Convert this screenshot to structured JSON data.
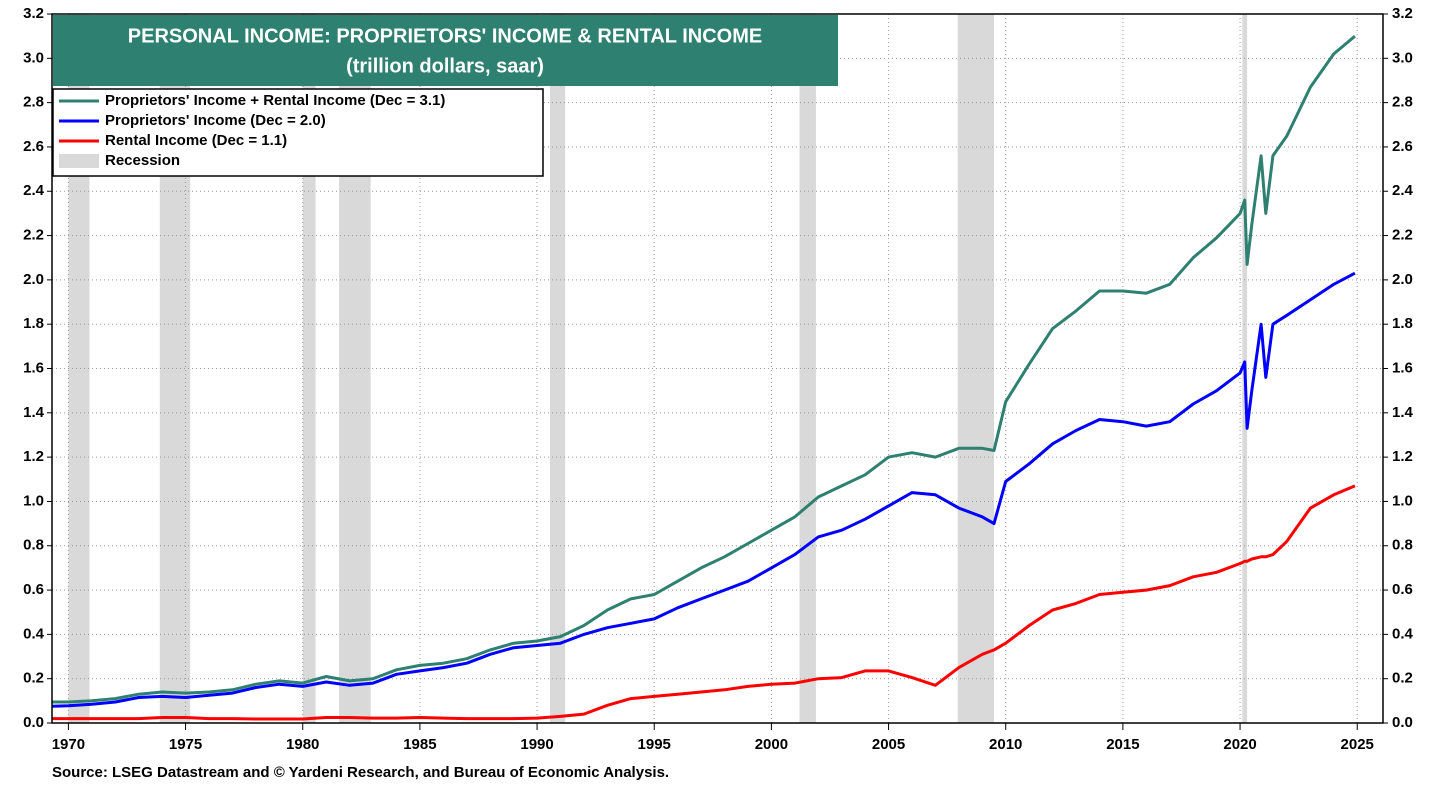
{
  "chart_data": {
    "type": "line",
    "title": "PERSONAL INCOME: PROPRIETORS' INCOME & RENTAL INCOME",
    "subtitle": "(trillion dollars, saar)",
    "source": "Source: LSEG Datastream and © Yardeni Research, and Bureau of Economic Analysis.",
    "x": [
      1969,
      1970,
      1971,
      1972,
      1973,
      1974,
      1975,
      1976,
      1977,
      1978,
      1979,
      1980,
      1981,
      1982,
      1983,
      1984,
      1985,
      1986,
      1987,
      1988,
      1989,
      1990,
      1991,
      1992,
      1993,
      1994,
      1995,
      1996,
      1997,
      1998,
      1999,
      2000,
      2001,
      2002,
      2003,
      2004,
      2005,
      2006,
      2007,
      2008,
      2009,
      2009.5,
      2010,
      2011,
      2012,
      2013,
      2014,
      2015,
      2016,
      2017,
      2018,
      2019,
      2020,
      2020.2,
      2020.3,
      2020.5,
      2020.9,
      2021.1,
      2021.4,
      2022,
      2023,
      2024,
      2024.9
    ],
    "series": [
      {
        "name": "Proprietors' Income + Rental Income (Dec = 3.1)",
        "color": "#2e8070",
        "values": [
          0.095,
          0.095,
          0.1,
          0.11,
          0.13,
          0.14,
          0.135,
          0.14,
          0.15,
          0.175,
          0.19,
          0.18,
          0.21,
          0.19,
          0.2,
          0.24,
          0.26,
          0.27,
          0.29,
          0.33,
          0.36,
          0.37,
          0.39,
          0.44,
          0.51,
          0.56,
          0.58,
          0.64,
          0.7,
          0.75,
          0.81,
          0.87,
          0.93,
          1.02,
          1.07,
          1.12,
          1.2,
          1.22,
          1.2,
          1.24,
          1.24,
          1.23,
          1.45,
          1.62,
          1.78,
          1.86,
          1.95,
          1.95,
          1.94,
          1.98,
          2.1,
          2.19,
          2.3,
          2.36,
          2.07,
          2.25,
          2.56,
          2.3,
          2.56,
          2.65,
          2.87,
          3.02,
          3.1
        ]
      },
      {
        "name": "Proprietors' Income (Dec = 2.0)",
        "color": "#0000ff",
        "values": [
          0.075,
          0.078,
          0.085,
          0.095,
          0.115,
          0.12,
          0.115,
          0.125,
          0.135,
          0.16,
          0.175,
          0.165,
          0.185,
          0.17,
          0.18,
          0.22,
          0.235,
          0.25,
          0.27,
          0.31,
          0.34,
          0.35,
          0.36,
          0.4,
          0.43,
          0.45,
          0.47,
          0.52,
          0.56,
          0.6,
          0.64,
          0.7,
          0.76,
          0.84,
          0.87,
          0.92,
          0.98,
          1.04,
          1.03,
          0.97,
          0.93,
          0.9,
          1.09,
          1.17,
          1.26,
          1.32,
          1.37,
          1.36,
          1.34,
          1.36,
          1.44,
          1.5,
          1.58,
          1.63,
          1.33,
          1.5,
          1.8,
          1.56,
          1.8,
          1.84,
          1.91,
          1.98,
          2.03
        ]
      },
      {
        "name": "Rental Income (Dec = 1.1)",
        "color": "#ff0000",
        "values": [
          0.02,
          0.02,
          0.02,
          0.02,
          0.02,
          0.025,
          0.025,
          0.02,
          0.02,
          0.018,
          0.018,
          0.018,
          0.025,
          0.025,
          0.022,
          0.022,
          0.025,
          0.022,
          0.02,
          0.02,
          0.02,
          0.022,
          0.03,
          0.04,
          0.08,
          0.11,
          0.12,
          0.13,
          0.14,
          0.15,
          0.165,
          0.175,
          0.18,
          0.2,
          0.205,
          0.235,
          0.235,
          0.205,
          0.17,
          0.25,
          0.31,
          0.33,
          0.36,
          0.44,
          0.51,
          0.54,
          0.58,
          0.59,
          0.6,
          0.62,
          0.66,
          0.68,
          0.72,
          0.73,
          0.73,
          0.74,
          0.75,
          0.75,
          0.76,
          0.82,
          0.97,
          1.03,
          1.07
        ]
      }
    ],
    "recession_label": "Recession",
    "recession_color": "#d9d9d9",
    "recessions": [
      [
        1970.0,
        1970.9
      ],
      [
        1973.9,
        1975.2
      ],
      [
        1980.0,
        1980.55
      ],
      [
        1981.55,
        1982.9
      ],
      [
        1990.55,
        1991.2
      ],
      [
        2001.2,
        2001.9
      ],
      [
        2007.95,
        2009.5
      ],
      [
        2020.1,
        2020.3
      ]
    ],
    "xlim": [
      1969.3,
      2026.1
    ],
    "xticks": [
      1970,
      1975,
      1980,
      1985,
      1990,
      1995,
      2000,
      2005,
      2010,
      2015,
      2020,
      2025
    ],
    "ylim": [
      0,
      3.2
    ],
    "yticks": [
      {
        "value": 0,
        "label": "0.0"
      },
      0.2,
      0.4,
      0.6,
      0.8,
      {
        "value": 1,
        "label": "1.0"
      },
      1.2,
      1.4,
      1.6,
      1.8,
      {
        "value": 2,
        "label": "2.0"
      },
      2.2,
      2.4,
      2.6,
      2.8,
      {
        "value": 3,
        "label": "3.0"
      },
      3.2
    ],
    "grid": true,
    "legend": "upper left",
    "title_color": "#2e8070"
  }
}
